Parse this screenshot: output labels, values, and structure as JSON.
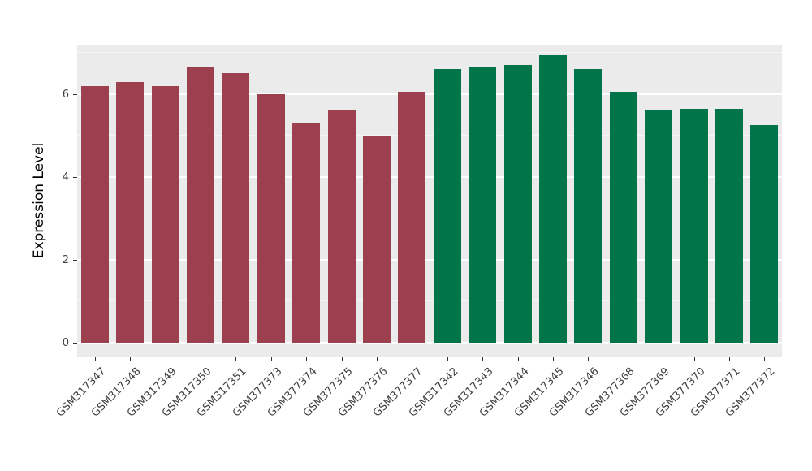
{
  "chart_data": {
    "type": "bar",
    "title": "",
    "xlabel": "",
    "ylabel": "Expression Level",
    "categories": [
      "GSM317347",
      "GSM317348",
      "GSM317349",
      "GSM317350",
      "GSM317351",
      "GSM377373",
      "GSM377374",
      "GSM377375",
      "GSM377376",
      "GSM377377",
      "GSM317342",
      "GSM317343",
      "GSM317344",
      "GSM317345",
      "GSM317346",
      "GSM377368",
      "GSM377369",
      "GSM377370",
      "GSM377371",
      "GSM377372"
    ],
    "values": [
      6.2,
      6.3,
      6.2,
      6.65,
      6.5,
      6.0,
      5.3,
      5.6,
      5.0,
      6.05,
      6.6,
      6.65,
      6.7,
      6.95,
      6.6,
      6.05,
      5.6,
      5.65,
      5.65,
      5.25
    ],
    "groups": [
      "group1",
      "group1",
      "group1",
      "group1",
      "group1",
      "group1",
      "group1",
      "group1",
      "group1",
      "group1",
      "group2",
      "group2",
      "group2",
      "group2",
      "group2",
      "group2",
      "group2",
      "group2",
      "group2",
      "group2"
    ],
    "palette": {
      "group1": "#9c3f4e",
      "group2": "#027449"
    },
    "panel_background": "#ebebeb",
    "grid_color": "#ffffff",
    "yticks": [
      0,
      2,
      4,
      6
    ],
    "yticks_minor": [
      1,
      3,
      5,
      7
    ],
    "ylim": [
      0,
      7.2
    ],
    "legend": "none"
  }
}
